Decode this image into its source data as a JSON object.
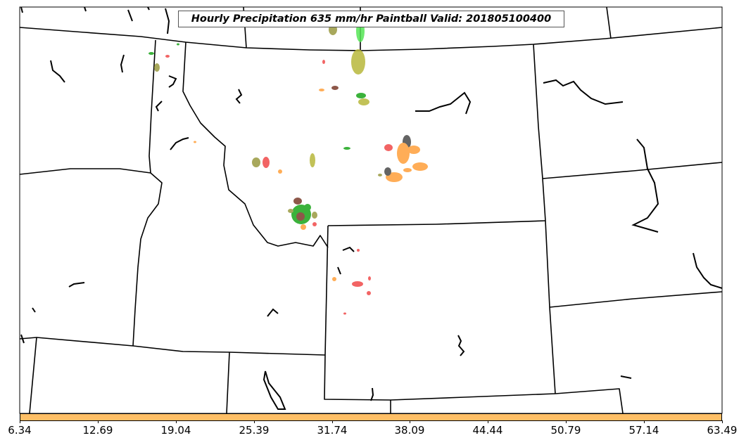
{
  "title": "Hourly Precipitation 635 mm/hr Paintball Valid: 201805100400",
  "colorbar": {
    "color": "#ffbf66",
    "ticks": [
      "6.34",
      "12.69",
      "19.04",
      "25.39",
      "31.74",
      "38.09",
      "44.44",
      "50.79",
      "57.14",
      "63.49"
    ]
  },
  "colors": {
    "background": "#ffffff",
    "boundaries": "#000000",
    "paintball": [
      "#f04a4a",
      "#ff9f3a",
      "#1aa51a",
      "#55e655",
      "#9a9a40",
      "#b8b83c",
      "#7a3a2a",
      "#4a4a4a"
    ]
  }
}
